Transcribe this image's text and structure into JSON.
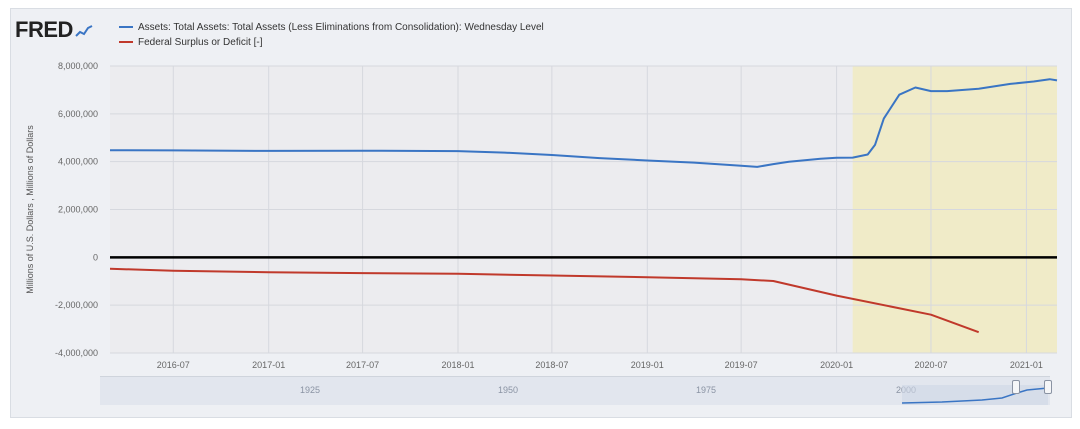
{
  "brand": {
    "logo_text": "FRED"
  },
  "legend": [
    {
      "label": "Assets: Total Assets: Total Assets (Less Eliminations from Consolidation): Wednesday Level",
      "color": "#3a75c4"
    },
    {
      "label": "Federal Surplus or Deficit [-]",
      "color": "#c0392b"
    }
  ],
  "navigator": {
    "labels": [
      "1925",
      "1950",
      "1975",
      "2000"
    ]
  },
  "chart_data": {
    "type": "line",
    "ylabel": "Millions of U.S. Dollars , Millions of Dollars",
    "ylim": [
      -4000000,
      8000000
    ],
    "yticks": [
      "8,000,000",
      "6,000,000",
      "4,000,000",
      "2,000,000",
      "0",
      "-2,000,000",
      "-4,000,000"
    ],
    "ytick_values": [
      8000000,
      6000000,
      4000000,
      2000000,
      0,
      -2000000,
      -4000000
    ],
    "xlim": [
      "2016-03",
      "2021-03"
    ],
    "xticks": [
      "2016-07",
      "2017-01",
      "2017-07",
      "2018-01",
      "2018-07",
      "2019-01",
      "2019-07",
      "2020-01",
      "2020-07",
      "2021-01"
    ],
    "recession_shading": {
      "start": "2020-02",
      "end": "2021-03",
      "color": "#f0ebc8"
    },
    "zero_line": true,
    "grid": true,
    "series": [
      {
        "name": "Assets: Total Assets: Total Assets (Less Eliminations from Consolidation): Wednesday Level",
        "color": "#3a75c4",
        "points": [
          [
            "2016-03-01",
            4480000
          ],
          [
            "2016-07-01",
            4470000
          ],
          [
            "2017-01-01",
            4450000
          ],
          [
            "2017-07-01",
            4460000
          ],
          [
            "2018-01-01",
            4440000
          ],
          [
            "2018-04-01",
            4380000
          ],
          [
            "2018-07-01",
            4280000
          ],
          [
            "2018-10-01",
            4150000
          ],
          [
            "2019-01-01",
            4050000
          ],
          [
            "2019-04-01",
            3960000
          ],
          [
            "2019-07-01",
            3830000
          ],
          [
            "2019-08-01",
            3780000
          ],
          [
            "2019-09-01",
            3900000
          ],
          [
            "2019-10-01",
            4000000
          ],
          [
            "2019-12-01",
            4120000
          ],
          [
            "2020-01-01",
            4160000
          ],
          [
            "2020-02-01",
            4170000
          ],
          [
            "2020-03-01",
            4300000
          ],
          [
            "2020-03-15",
            4700000
          ],
          [
            "2020-04-01",
            5800000
          ],
          [
            "2020-05-01",
            6800000
          ],
          [
            "2020-06-01",
            7100000
          ],
          [
            "2020-07-01",
            6950000
          ],
          [
            "2020-08-01",
            6950000
          ],
          [
            "2020-10-01",
            7050000
          ],
          [
            "2020-12-01",
            7250000
          ],
          [
            "2021-01-15",
            7350000
          ],
          [
            "2021-02-15",
            7450000
          ],
          [
            "2021-03-01",
            7400000
          ]
        ]
      },
      {
        "name": "Federal Surplus or Deficit [-]",
        "color": "#c0392b",
        "points": [
          [
            "2016-03-01",
            -480000
          ],
          [
            "2016-07-01",
            -560000
          ],
          [
            "2017-01-01",
            -620000
          ],
          [
            "2017-07-01",
            -660000
          ],
          [
            "2018-01-01",
            -690000
          ],
          [
            "2018-07-01",
            -760000
          ],
          [
            "2019-01-01",
            -830000
          ],
          [
            "2019-07-01",
            -920000
          ],
          [
            "2019-09-01",
            -990000
          ],
          [
            "2020-01-01",
            -1600000
          ],
          [
            "2020-07-01",
            -2400000
          ],
          [
            "2020-10-01",
            -3130000
          ]
        ]
      }
    ]
  }
}
